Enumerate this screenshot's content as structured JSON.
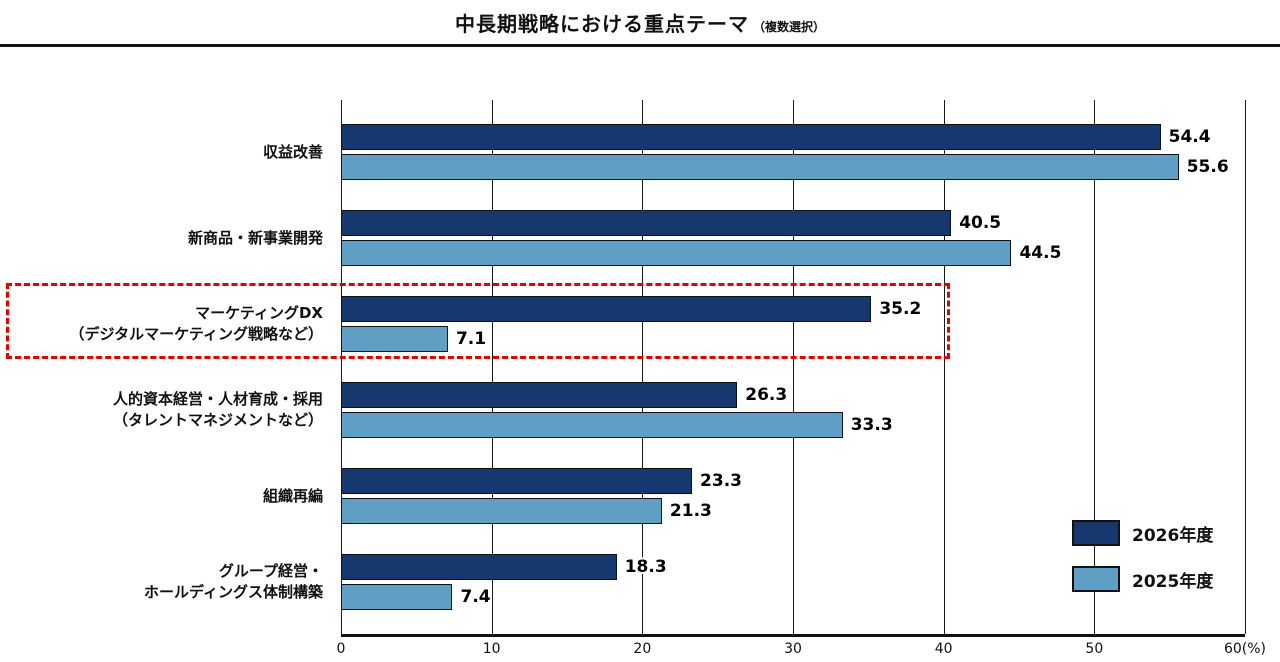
{
  "title": "中長期戦略における重点テーマ",
  "title_note": "（複数選択）",
  "colors": {
    "series_2026": "#16386e",
    "series_2025": "#5f9fc4",
    "highlight_box": "#e00000",
    "axis": "#111111"
  },
  "legend": {
    "items": [
      {
        "label": "2026年度",
        "color": "#16386e"
      },
      {
        "label": "2025年度",
        "color": "#5f9fc4"
      }
    ]
  },
  "chart_data": {
    "type": "bar",
    "orientation": "horizontal",
    "title": "中長期戦略における重点テーマ（複数選択）",
    "categories": [
      "収益改善",
      "新商品・新事業開発",
      "マーケティングDX（デジタルマーケティング戦略など）",
      "人的資本経営・人材育成・採用（タレントマネジメントなど）",
      "組織再編",
      "グループ経営・ホールディングス体制構築"
    ],
    "category_lines": [
      [
        "収益改善"
      ],
      [
        "新商品・新事業開発"
      ],
      [
        "マーケティングDX",
        "（デジタルマーケティング戦略など）"
      ],
      [
        "人的資本経営・人材育成・採用",
        "（タレントマネジメントなど）"
      ],
      [
        "組織再編"
      ],
      [
        "グループ経営・",
        "ホールディングス体制構築"
      ]
    ],
    "series": [
      {
        "name": "2026年度",
        "values": [
          54.4,
          40.5,
          35.2,
          26.3,
          23.3,
          18.3
        ]
      },
      {
        "name": "2025年度",
        "values": [
          55.6,
          44.5,
          7.1,
          33.3,
          21.3,
          7.4
        ]
      }
    ],
    "xlim": [
      0,
      60
    ],
    "ticks": [
      0,
      10,
      20,
      30,
      40,
      50,
      60
    ],
    "tick_labels": [
      "0",
      "10",
      "20",
      "30",
      "40",
      "50",
      "60(%)"
    ],
    "x_unit": "%",
    "grid": true,
    "legend_position": "bottom-right",
    "highlighted_category_index": 2
  }
}
